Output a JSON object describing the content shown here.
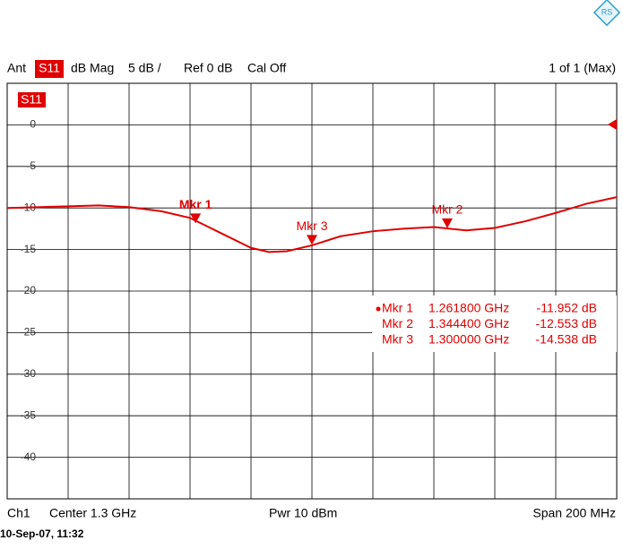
{
  "chart_data": {
    "type": "line",
    "header": {
      "port": "Ant",
      "trace": "S11",
      "format": "dB Mag",
      "scale": "5 dB /",
      "ref": "Ref 0 dB",
      "cal": "Cal Off",
      "page": "1 of 1 (Max)"
    },
    "footer": {
      "channel": "Ch1",
      "center": "Center 1.3 GHz",
      "power": "Pwr 10 dBm",
      "span": "Span 200 MHz",
      "timestamp": "10-Sep-07, 11:32"
    },
    "trace_label": "S11",
    "xlim": [
      1.2,
      1.4
    ],
    "ylim": [
      -45,
      5
    ],
    "yticks": [
      0,
      -5,
      -10,
      -15,
      -20,
      -25,
      -30,
      -35,
      -40
    ],
    "grid": true,
    "series": [
      {
        "name": "S11",
        "color": "#e00000",
        "x": [
          1.2,
          1.22,
          1.23,
          1.24,
          1.2506,
          1.26,
          1.27,
          1.28,
          1.2859,
          1.2918,
          1.3,
          1.3094,
          1.32,
          1.33,
          1.34,
          1.3506,
          1.36,
          1.37,
          1.38,
          1.39,
          1.4
        ],
        "values": [
          -10.0,
          -9.8,
          -9.7,
          -9.9,
          -10.4,
          -11.2,
          -13.0,
          -14.8,
          -15.3,
          -15.2,
          -14.5,
          -13.4,
          -12.8,
          -12.5,
          -12.3,
          -12.7,
          -12.4,
          -11.6,
          -10.6,
          -9.5,
          -8.7
        ]
      }
    ],
    "active_marker": 0,
    "markers": [
      {
        "name": "Mkr 1",
        "x": 1.2618,
        "x_label": "1.261800 GHz",
        "value": -11.952,
        "value_label": "-11.952 dB"
      },
      {
        "name": "Mkr 2",
        "x": 1.3444,
        "x_label": "1.344400 GHz",
        "value": -12.553,
        "value_label": "-12.553 dB"
      },
      {
        "name": "Mkr 3",
        "x": 1.3,
        "x_label": "1.300000 GHz",
        "value": -14.538,
        "value_label": "-14.538 dB"
      }
    ]
  }
}
